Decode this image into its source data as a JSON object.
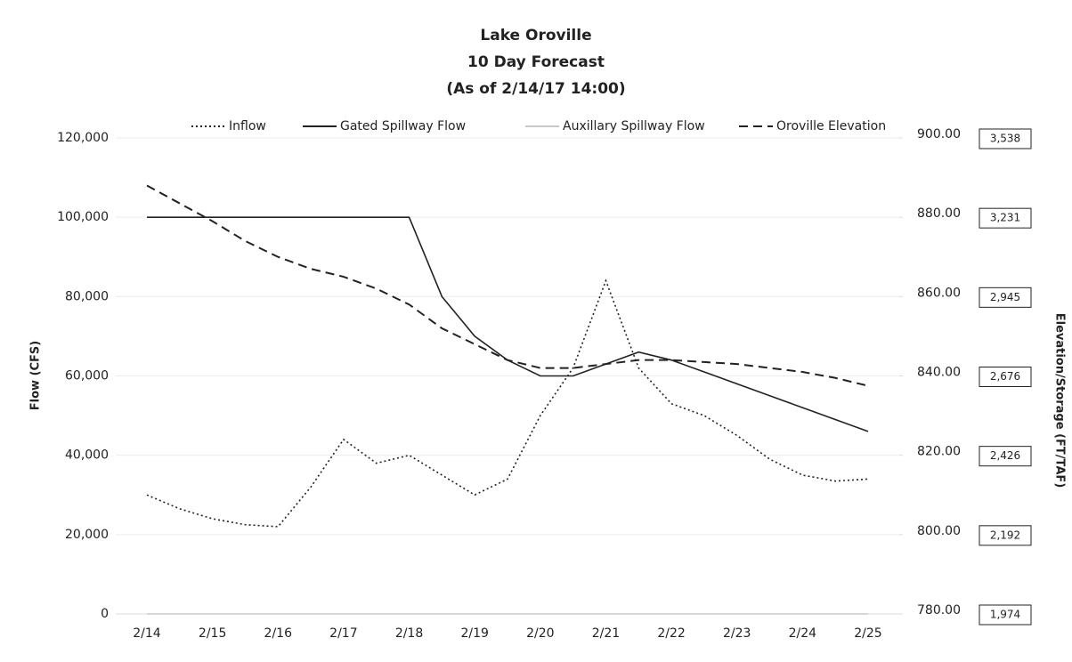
{
  "chart_data": {
    "type": "line",
    "title": [
      "Lake Oroville",
      "10 Day Forecast",
      "(As of 2/14/17 14:00)"
    ],
    "y_axis_label": "Flow (CFS)",
    "y2_axis_label": "Elevation/Storage (FT/TAF)",
    "categories": [
      "2/14",
      null,
      "2/15",
      null,
      "2/16",
      null,
      "2/17",
      null,
      "2/18",
      null,
      "2/19",
      null,
      "2/20",
      null,
      "2/21",
      null,
      "2/22",
      null,
      "2/23",
      null,
      "2/24",
      null,
      "2/25"
    ],
    "series": [
      {
        "name": "Inflow",
        "color": "#222222",
        "dash": "dotted",
        "values": [
          30000,
          26500,
          24000,
          22500,
          22000,
          32000,
          44000,
          38000,
          40000,
          35000,
          30000,
          34000,
          50000,
          62000,
          84000,
          62000,
          53000,
          50000,
          45000,
          39000,
          35000,
          33500,
          34000
        ]
      },
      {
        "name": "Gated Spillway Flow",
        "color": "#222222",
        "dash": "solid",
        "values": [
          100000,
          100000,
          100000,
          100000,
          100000,
          100000,
          100000,
          100000,
          100000,
          80000,
          70000,
          64000,
          60000,
          60000,
          63000,
          66000,
          64000,
          61000,
          58000,
          55000,
          52000,
          49000,
          46000
        ]
      },
      {
        "name": "Auxillary Spillway Flow",
        "color": "#c8c8c8",
        "dash": "solid",
        "values": [
          0,
          0,
          0,
          0,
          0,
          0,
          0,
          0,
          0,
          0,
          0,
          0,
          0,
          0,
          0,
          0,
          0,
          0,
          0,
          0,
          0,
          0,
          0
        ]
      },
      {
        "name": "Oroville Elevation",
        "color": "#222222",
        "dash": "dashed",
        "axis": "y2",
        "values": [
          888,
          883.5,
          879,
          874,
          870,
          867,
          865,
          862,
          858,
          852,
          848,
          844,
          842,
          842,
          843,
          844,
          844,
          843.5,
          843,
          842,
          841,
          839.5,
          837.5
        ]
      }
    ],
    "ylim": [
      0,
      120000
    ],
    "yticks": [
      0,
      {
        "value": 20000,
        "label": "20,000"
      },
      {
        "value": 40000,
        "label": "40,000"
      },
      {
        "value": 60000,
        "label": "60,000"
      },
      {
        "value": 80000,
        "label": "80,000"
      },
      {
        "value": 100000,
        "label": "100,000"
      },
      {
        "value": 120000,
        "label": "120,000"
      }
    ],
    "y2lim": [
      780,
      900
    ],
    "y2ticks": [
      {
        "value": 780,
        "label": "780.00"
      },
      {
        "value": 800,
        "label": "800.00"
      },
      {
        "value": 820,
        "label": "820.00"
      },
      {
        "value": 840,
        "label": "840.00"
      },
      {
        "value": 860,
        "label": "860.00"
      },
      {
        "value": 880,
        "label": "880.00"
      },
      {
        "value": 900,
        "label": "900.00"
      }
    ],
    "storage_labels": [
      "1,974",
      "2,192",
      "2,426",
      "2,676",
      "2,945",
      "3,231",
      "3,538"
    ],
    "grid": true,
    "legend": "top"
  }
}
